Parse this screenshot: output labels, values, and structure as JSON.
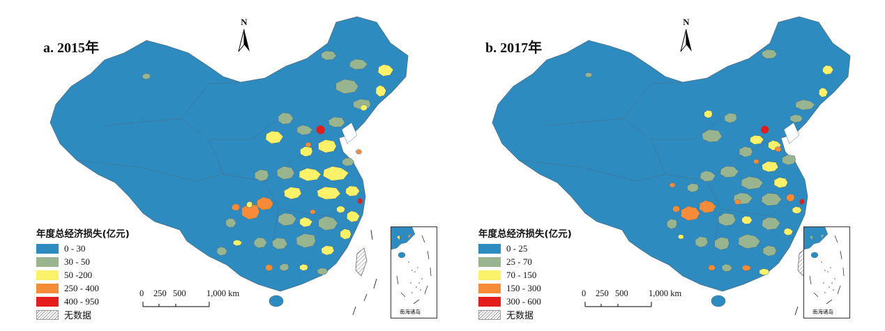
{
  "colors": {
    "c1": "#2e8bc0",
    "c2": "#98b590",
    "c3": "#fbf26a",
    "c4": "#f68c3a",
    "c5": "#e41c1c",
    "boundary": "#4b6e86"
  },
  "north_label": "N",
  "scale": {
    "ticks": [
      "0",
      "250",
      "500",
      "1,000 km"
    ]
  },
  "inset_label": "南海诸岛",
  "panels": [
    {
      "title": "a. 2015年",
      "legend": {
        "title": "年度总经济损失(亿元)",
        "items": [
          "0 - 30",
          "30 - 50",
          "50 -200",
          "250 - 400",
          "400 - 950"
        ],
        "nodata": "无数据"
      }
    },
    {
      "title": "b. 2017年",
      "legend": {
        "title": "年度总经济损失(亿元)",
        "items": [
          "0 - 25",
          "25 - 70",
          "70 - 150",
          "150 - 300",
          "300 - 600"
        ],
        "nodata": "无数据"
      }
    }
  ]
}
